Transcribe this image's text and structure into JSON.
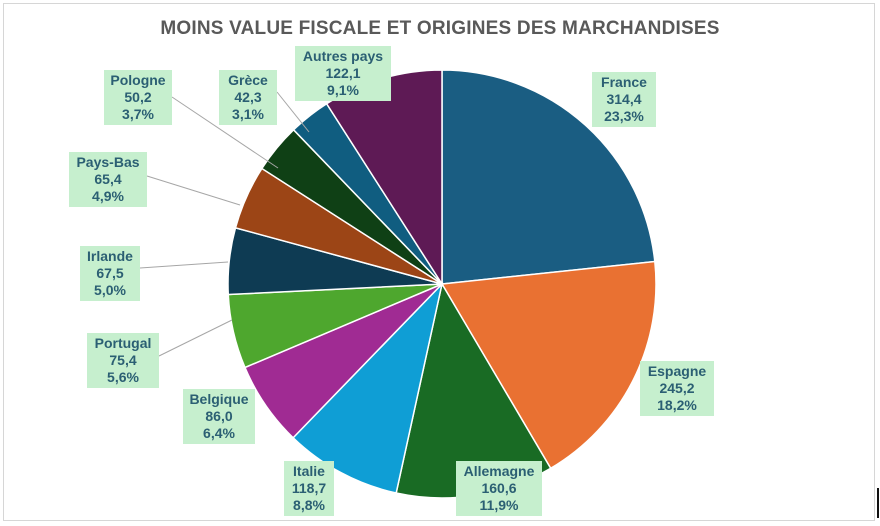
{
  "chart_data": {
    "type": "pie",
    "title": "MOINS VALUE FISCALE ET ORIGINES DES MARCHANDISES",
    "slices": [
      {
        "name": "France",
        "value": "314,4",
        "percent": "23,3%",
        "v": 314.4,
        "color": "#1a5d82"
      },
      {
        "name": "Espagne",
        "value": "245,2",
        "percent": "18,2%",
        "v": 245.2,
        "color": "#e97132"
      },
      {
        "name": "Allemagne",
        "value": "160,6",
        "percent": "11,9%",
        "v": 160.6,
        "color": "#196b24"
      },
      {
        "name": "Italie",
        "value": "118,7",
        "percent": "8,8%",
        "v": 118.7,
        "color": "#0f9ed5"
      },
      {
        "name": "Belgique",
        "value": "86,0",
        "percent": "6,4%",
        "v": 86.0,
        "color": "#a02b93"
      },
      {
        "name": "Portugal",
        "value": "75,4",
        "percent": "5,6%",
        "v": 75.4,
        "color": "#4ea72e"
      },
      {
        "name": "Irlande",
        "value": "67,5",
        "percent": "5,0%",
        "v": 67.5,
        "color": "#0e3b53"
      },
      {
        "name": "Pays-Bas",
        "value": "65,4",
        "percent": "4,9%",
        "v": 65.4,
        "color": "#9c4516"
      },
      {
        "name": "Pologne",
        "value": "50,2",
        "percent": "3,7%",
        "v": 50.2,
        "color": "#0f4015"
      },
      {
        "name": "Grèce",
        "value": "42,3",
        "percent": "3,1%",
        "v": 42.3,
        "color": "#105d80"
      },
      {
        "name": "Autres pays",
        "value": "122,1",
        "percent": "9,1%",
        "v": 122.1,
        "color": "#5e1a55"
      }
    ]
  }
}
